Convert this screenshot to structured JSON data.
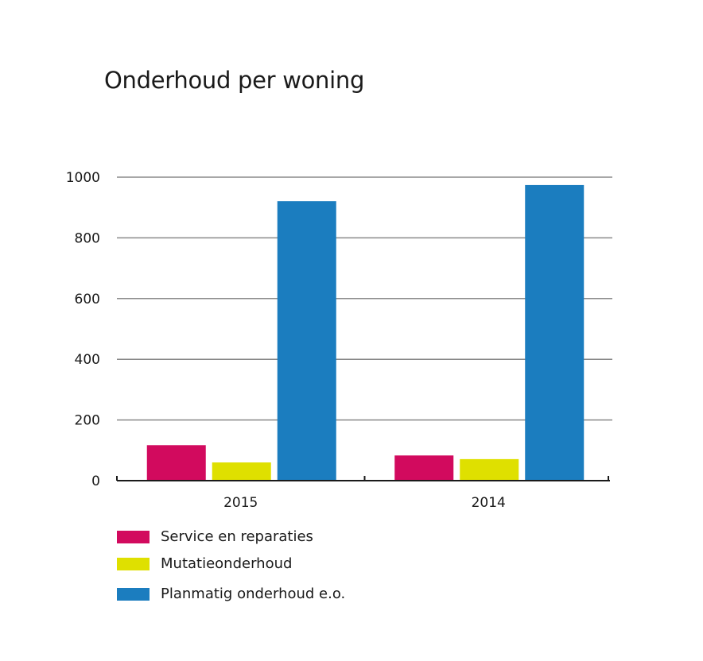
{
  "chart_data": {
    "type": "bar",
    "title": "Onderhoud per woning",
    "categories": [
      "2015",
      "2014"
    ],
    "series": [
      {
        "name": "Service en reparaties",
        "color": "#d20a5e",
        "values": [
          117,
          83
        ]
      },
      {
        "name": "Mutatieonderhoud",
        "color": "#dfe000",
        "values": [
          60,
          71
        ]
      },
      {
        "name": "Planmatig onderhoud e.o.",
        "color": "#1b7dbf",
        "values": [
          921,
          974
        ]
      }
    ],
    "yticks": [
      "0",
      "200",
      "400",
      "600",
      "800",
      "1000"
    ],
    "ylim": [
      0,
      1000
    ],
    "grid": true,
    "legend_position": "bottom-left"
  }
}
